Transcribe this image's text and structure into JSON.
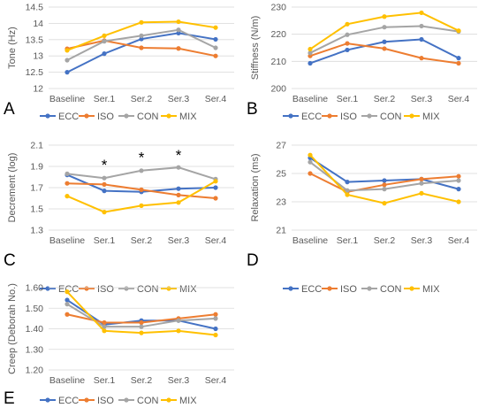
{
  "series_names": [
    "ECC",
    "ISO",
    "CON",
    "MIX"
  ],
  "colors": {
    "ECC": "#4472c4",
    "ISO": "#ed7d31",
    "CON": "#a5a5a5",
    "MIX": "#ffc000"
  },
  "chart_data": [
    {
      "type": "line",
      "panel_label": "A",
      "title": "",
      "ylabel": "Tone (Hz)",
      "xlabel": "",
      "categories": [
        "Baseline",
        "Ser.1",
        "Ser.2",
        "Ser.3",
        "Ser.4"
      ],
      "ylim": [
        12,
        14.5
      ],
      "yticks": [
        "12",
        "12.5",
        "13",
        "13.5",
        "14",
        "14.5"
      ],
      "ytick_values": [
        12,
        12.5,
        13,
        13.5,
        14,
        14.5
      ],
      "grid": true,
      "legend": "bottom",
      "annotations": [],
      "series": [
        {
          "name": "ECC",
          "values": [
            12.5,
            13.07,
            13.52,
            13.7,
            13.51
          ]
        },
        {
          "name": "ISO",
          "values": [
            13.22,
            13.47,
            13.25,
            13.23,
            13.0
          ]
        },
        {
          "name": "CON",
          "values": [
            12.87,
            13.45,
            13.62,
            13.8,
            13.25
          ]
        },
        {
          "name": "MIX",
          "values": [
            13.17,
            13.62,
            14.03,
            14.05,
            13.87
          ]
        }
      ]
    },
    {
      "type": "line",
      "panel_label": "B",
      "title": "",
      "ylabel": "Stiffness (N/m)",
      "xlabel": "",
      "categories": [
        "Baseline",
        "Ser.1",
        "Ser.2",
        "Ser.3",
        "Ser.4"
      ],
      "ylim": [
        200,
        230
      ],
      "yticks": [
        "200",
        "210",
        "220",
        "230"
      ],
      "ytick_values": [
        200,
        210,
        220,
        230
      ],
      "grid": true,
      "legend": "bottom",
      "annotations": [],
      "series": [
        {
          "name": "ECC",
          "values": [
            209.3,
            214.2,
            217.2,
            218.1,
            211.2
          ]
        },
        {
          "name": "ISO",
          "values": [
            212.0,
            216.6,
            214.7,
            211.2,
            209.3
          ]
        },
        {
          "name": "CON",
          "values": [
            213.1,
            219.8,
            222.6,
            223.0,
            221.0
          ]
        },
        {
          "name": "MIX",
          "values": [
            214.5,
            223.7,
            226.5,
            227.9,
            221.3
          ]
        }
      ]
    },
    {
      "type": "line",
      "panel_label": "C",
      "title": "",
      "ylabel": "Decrement (log)",
      "xlabel": "",
      "categories": [
        "Baseline",
        "Ser.1",
        "Ser.2",
        "Ser.3",
        "Ser.4"
      ],
      "ylim": [
        1.3,
        2.1
      ],
      "yticks": [
        "1.3",
        "1.5",
        "1.7",
        "1.9",
        "2.1"
      ],
      "ytick_values": [
        1.3,
        1.5,
        1.7,
        1.9,
        2.1
      ],
      "grid": true,
      "legend": "bottom",
      "annotations": [
        {
          "text": "*",
          "category": "Ser.1",
          "y": 1.95
        },
        {
          "text": "*",
          "category": "Ser.2",
          "y": 2.02
        },
        {
          "text": "*",
          "category": "Ser.3",
          "y": 2.04
        }
      ],
      "series": [
        {
          "name": "ECC",
          "values": [
            1.82,
            1.67,
            1.66,
            1.69,
            1.7
          ]
        },
        {
          "name": "ISO",
          "values": [
            1.74,
            1.73,
            1.68,
            1.63,
            1.6
          ]
        },
        {
          "name": "CON",
          "values": [
            1.83,
            1.79,
            1.86,
            1.89,
            1.78
          ]
        },
        {
          "name": "MIX",
          "values": [
            1.62,
            1.47,
            1.53,
            1.56,
            1.76
          ]
        }
      ]
    },
    {
      "type": "line",
      "panel_label": "D",
      "title": "",
      "ylabel": "Relaxation (ms)",
      "xlabel": "",
      "categories": [
        "Baseline",
        "Ser.1",
        "Ser.2",
        "Ser.3",
        "Ser.4"
      ],
      "ylim": [
        21,
        27
      ],
      "yticks": [
        "21",
        "23",
        "25",
        "27"
      ],
      "ytick_values": [
        21,
        23,
        25,
        27
      ],
      "grid": true,
      "legend": "bottom",
      "annotations": [],
      "series": [
        {
          "name": "ECC",
          "values": [
            26.1,
            24.4,
            24.5,
            24.6,
            23.9
          ]
        },
        {
          "name": "ISO",
          "values": [
            25.0,
            23.7,
            24.2,
            24.6,
            24.8
          ]
        },
        {
          "name": "CON",
          "values": [
            25.8,
            23.8,
            23.9,
            24.3,
            24.5
          ]
        },
        {
          "name": "MIX",
          "values": [
            26.3,
            23.5,
            22.9,
            23.6,
            23.0
          ]
        }
      ]
    },
    {
      "type": "line",
      "panel_label": "E",
      "title": "",
      "ylabel": "Creep (Deborah No.)",
      "xlabel": "",
      "categories": [
        "Baseline",
        "Ser.1",
        "Ser.2",
        "Ser.3",
        "Ser.4"
      ],
      "ylim": [
        1.2,
        1.6
      ],
      "yticks": [
        "1.20",
        "1.30",
        "1.40",
        "1.50",
        "1.60"
      ],
      "ytick_values": [
        1.2,
        1.3,
        1.4,
        1.5,
        1.6
      ],
      "grid": true,
      "legend": "bottom",
      "annotations": [],
      "series": [
        {
          "name": "ECC",
          "values": [
            1.54,
            1.42,
            1.44,
            1.44,
            1.4
          ]
        },
        {
          "name": "ISO",
          "values": [
            1.47,
            1.43,
            1.43,
            1.45,
            1.47
          ]
        },
        {
          "name": "CON",
          "values": [
            1.52,
            1.41,
            1.41,
            1.44,
            1.45
          ]
        },
        {
          "name": "MIX",
          "values": [
            1.58,
            1.39,
            1.38,
            1.39,
            1.37
          ]
        }
      ]
    }
  ]
}
